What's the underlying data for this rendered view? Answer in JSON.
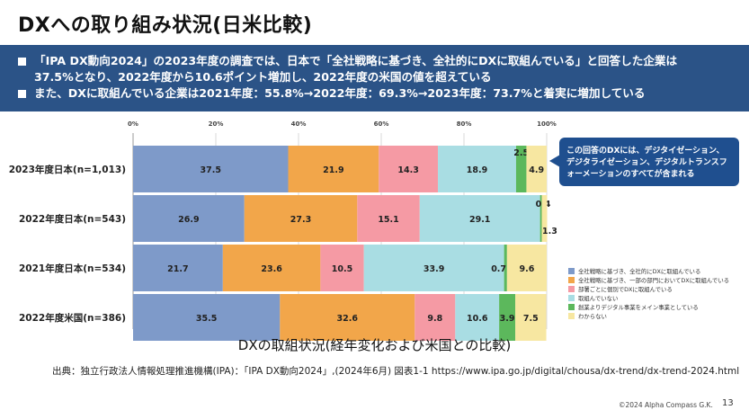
{
  "title": "DXへの取り組み状況(日米比較)",
  "banner": {
    "bullets": [
      "「IPA DX動向2024」の2023年度の調査では、日本で「全社戦略に基づき、全社的にDXに取組んでいる」と回答した企業は",
      "37.5%となり、2022年度から10.6ポイント増加し、2022年度の米国の値を超えている",
      "また、DXに取組んでいる企業は2021年度：55.8%→2022年度：69.3%→2023年度：73.7%と着実に増加している"
    ]
  },
  "callout": "この回答のDXには、デジタイゼーション、デジタライゼーション、デジタルトランスフォーメーションのすべてが含まれる",
  "caption": "DXの取組状況(経年変化および米国との比較)",
  "source": "出典：独立行政法人情報処理推進機構(IPA)：「IPA DX動向2024」,(2024年6月) 図表1-1 https://www.ipa.go.jp/digital/chousa/dx-trend/dx-trend-2024.html",
  "copyright": "©2024 Alpha Compass G.K.",
  "page_number": "13",
  "chart_data": {
    "type": "bar",
    "orientation": "horizontal-stacked-100",
    "xlim": [
      0,
      100
    ],
    "x_ticks": [
      "0%",
      "20%",
      "40%",
      "60%",
      "80%",
      "100%"
    ],
    "legend_position": "right",
    "categories": [
      "2023年度日本(n=1,013)",
      "2022年度日本(n=543)",
      "2021年度日本(n=534)",
      "2022年度米国(n=386)"
    ],
    "series": [
      {
        "name": "全社戦略に基づき、全社的にDXに取組んでいる",
        "color": "#7e9ac9",
        "values": [
          37.5,
          26.9,
          21.7,
          35.5
        ]
      },
      {
        "name": "全社戦略に基づき、一部の部門においてDXに取組んでいる",
        "color": "#f2a64a",
        "values": [
          21.9,
          27.3,
          23.6,
          32.6
        ]
      },
      {
        "name": "部署ごとに個別でDXに取組んでいる",
        "color": "#f59aa4",
        "values": [
          14.3,
          15.1,
          10.5,
          9.8
        ]
      },
      {
        "name": "取組んでいない",
        "color": "#a9dde3",
        "values": [
          18.9,
          29.1,
          33.9,
          10.6
        ]
      },
      {
        "name": "創業よりデジタル事業をメイン事業としている",
        "color": "#5cb85c",
        "values": [
          2.5,
          0.4,
          0.7,
          3.9
        ]
      },
      {
        "name": "わからない",
        "color": "#f7e7a1",
        "values": [
          4.9,
          1.3,
          9.6,
          7.5
        ]
      }
    ],
    "value_labels": [
      [
        "37.5",
        "21.9",
        "14.3",
        "18.9",
        "2.5",
        "4.9"
      ],
      [
        "26.9",
        "27.3",
        "15.1",
        "29.1",
        "0.4",
        "1.3"
      ],
      [
        "21.7",
        "23.6",
        "10.5",
        "33.9",
        "0.7",
        "9.6"
      ],
      [
        "35.5",
        "32.6",
        "9.8",
        "10.6",
        "3.9",
        "7.5"
      ]
    ]
  }
}
